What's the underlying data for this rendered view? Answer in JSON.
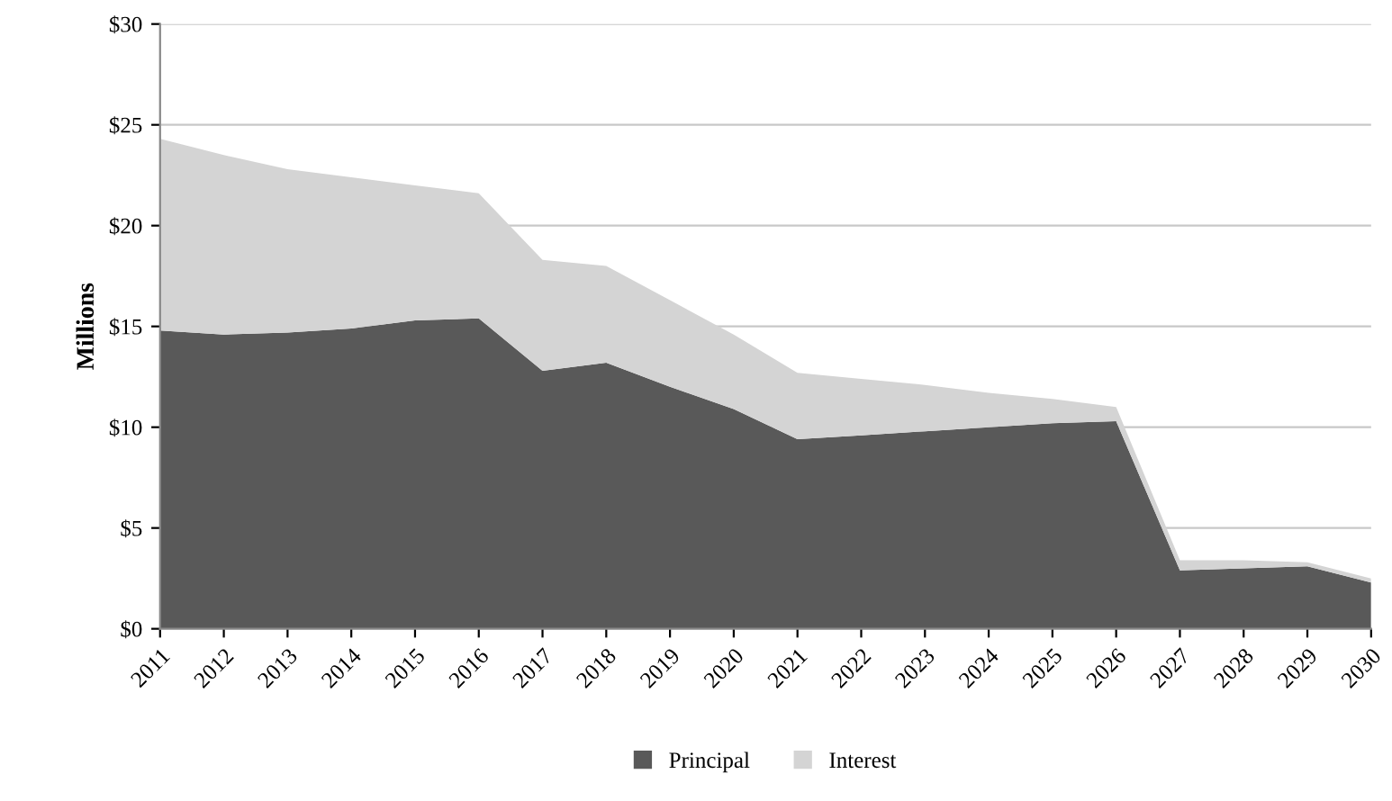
{
  "chart_data": {
    "type": "area",
    "stacked": true,
    "ylabel": "Millions",
    "categories": [
      "2011",
      "2012",
      "2013",
      "2014",
      "2015",
      "2016",
      "2017",
      "2018",
      "2019",
      "2020",
      "2021",
      "2022",
      "2023",
      "2024",
      "2025",
      "2026",
      "2027",
      "2028",
      "2029",
      "2030"
    ],
    "series": [
      {
        "name": "Principal",
        "color": "#595959",
        "values": [
          14.8,
          14.6,
          14.7,
          14.9,
          15.3,
          15.4,
          12.8,
          13.2,
          12.0,
          10.9,
          9.4,
          9.6,
          9.8,
          10.0,
          10.2,
          10.3,
          2.9,
          3.0,
          3.1,
          2.3
        ]
      },
      {
        "name": "Interest",
        "color": "#d4d4d4",
        "values": [
          9.5,
          8.9,
          8.1,
          7.5,
          6.7,
          6.2,
          5.5,
          4.8,
          4.3,
          3.7,
          3.3,
          2.8,
          2.3,
          1.7,
          1.2,
          0.7,
          0.5,
          0.4,
          0.2,
          0.2
        ]
      }
    ],
    "ylim": [
      0,
      30
    ],
    "yticks": [
      {
        "value": 0,
        "label": "$0"
      },
      {
        "value": 5,
        "label": "$5"
      },
      {
        "value": 10,
        "label": "$10"
      },
      {
        "value": 15,
        "label": "$15"
      },
      {
        "value": 20,
        "label": "$20"
      },
      {
        "value": 25,
        "label": "$25"
      },
      {
        "value": 30,
        "label": "$30"
      }
    ],
    "grid": "y",
    "legend": "bottom"
  }
}
